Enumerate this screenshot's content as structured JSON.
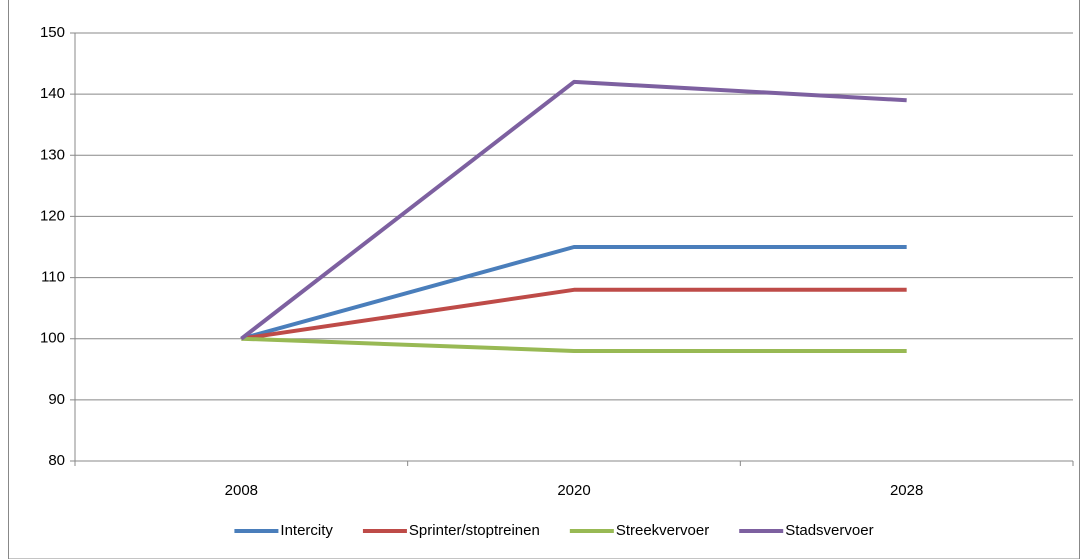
{
  "chart_data": {
    "type": "line",
    "categories": [
      "2008",
      "2020",
      "2028"
    ],
    "series": [
      {
        "name": "Intercity",
        "color": "#4a7ebb",
        "values": [
          100,
          115,
          115
        ]
      },
      {
        "name": "Sprinter/stoptreinen",
        "color": "#be4b48",
        "values": [
          100,
          108,
          108
        ]
      },
      {
        "name": "Streekvervoer",
        "color": "#98b954",
        "values": [
          100,
          98,
          98
        ]
      },
      {
        "name": "Stadsvervoer",
        "color": "#7d60a0",
        "values": [
          100,
          142,
          139
        ]
      }
    ],
    "ylim": [
      80,
      150
    ],
    "yticks": [
      80,
      90,
      100,
      110,
      120,
      130,
      140,
      150
    ],
    "grid": true,
    "legend": "bottom"
  }
}
